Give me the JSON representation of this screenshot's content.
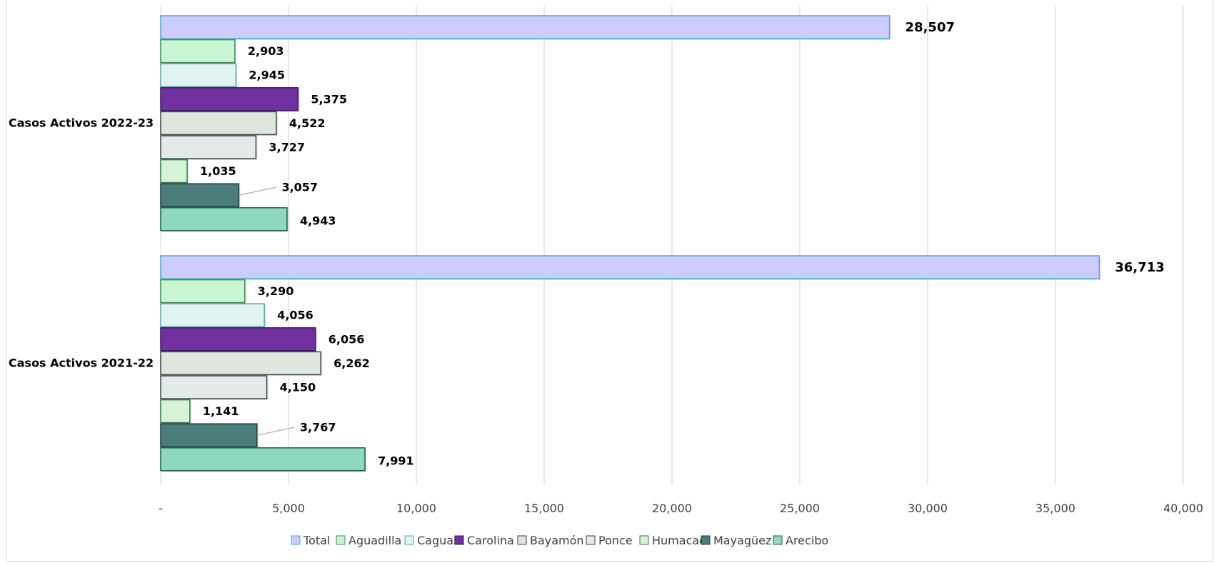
{
  "chart_data": {
    "type": "bar",
    "orientation": "horizontal",
    "categories": [
      "Casos Activos 2022-23",
      "Casos Activos 2021-22"
    ],
    "xlim": [
      0,
      40000
    ],
    "x_ticks": [
      0,
      5000,
      10000,
      15000,
      20000,
      25000,
      30000,
      35000,
      40000
    ],
    "x_tick_labels": [
      "-",
      "5,000",
      "10,000",
      "15,000",
      "20,000",
      "25,000",
      "30,000",
      "35,000",
      "40,000"
    ],
    "grid": "vertical",
    "legend_position": "bottom",
    "series": [
      {
        "name": "Total",
        "color": "#ccccff",
        "stroke": "#4bacc6",
        "values": [
          28507,
          36713
        ],
        "labels": [
          "28,507",
          "36,713"
        ]
      },
      {
        "name": "Aguadilla",
        "color": "#c8f5d2",
        "stroke": "#3c8c5a",
        "values": [
          2903,
          3290
        ],
        "labels": [
          "2,903",
          "3,290"
        ]
      },
      {
        "name": "Caguas",
        "color": "#dff3f3",
        "stroke": "#5fa3a3",
        "values": [
          2945,
          4056
        ],
        "labels": [
          "2,945",
          "4,056"
        ]
      },
      {
        "name": "Carolina",
        "color": "#7030a0",
        "stroke": "#3b1a58",
        "values": [
          5375,
          6056
        ],
        "labels": [
          "5,375",
          "6,056"
        ]
      },
      {
        "name": "Bayamón",
        "color": "#dfe6df",
        "stroke": "#3a4a3a",
        "values": [
          4522,
          6262
        ],
        "labels": [
          "4,522",
          "6,262"
        ]
      },
      {
        "name": "Ponce",
        "color": "#e4e9ea",
        "stroke": "#3f4a4e",
        "values": [
          3727,
          4150
        ],
        "labels": [
          "3,727",
          "4,150"
        ]
      },
      {
        "name": "Humacao",
        "color": "#d8f2d8",
        "stroke": "#2f7a4a",
        "values": [
          1035,
          1141
        ],
        "labels": [
          "1,035",
          "1,141"
        ]
      },
      {
        "name": "Mayagüez",
        "color": "#4a7c7a",
        "stroke": "#1f3e3c",
        "values": [
          3057,
          3767
        ],
        "labels": [
          "3,057",
          "3,767"
        ]
      },
      {
        "name": "Arecibo",
        "color": "#8fd8c0",
        "stroke": "#1f5f40",
        "values": [
          4943,
          7991
        ],
        "labels": [
          "4,943",
          "7,991"
        ]
      }
    ]
  }
}
